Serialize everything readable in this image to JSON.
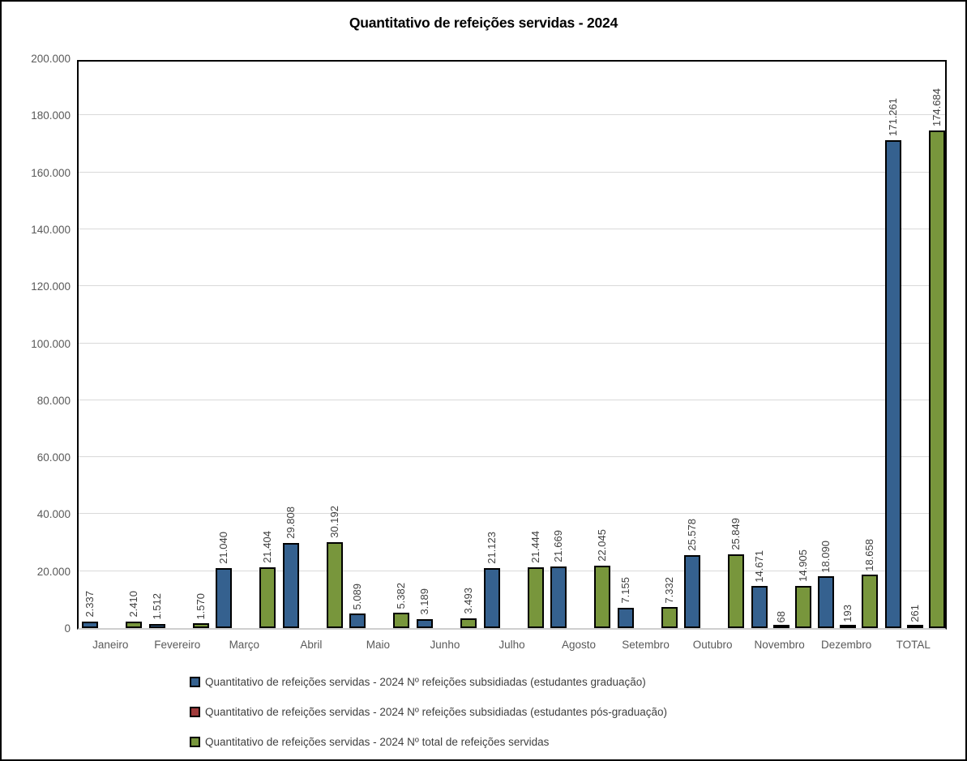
{
  "title": "Quantitativo de refeições servidas - 2024",
  "chart_data": {
    "type": "bar",
    "categories": [
      "Janeiro",
      "Fevereiro",
      "Março",
      "Abril",
      "Maio",
      "Junho",
      "Julho",
      "Agosto",
      "Setembro",
      "Outubro",
      "Novembro",
      "Dezembro",
      "TOTAL"
    ],
    "series": [
      {
        "name": "Quantitativo de refeições servidas - 2024 Nº refeições subsidiadas (estudantes graduação)",
        "color": "#35618F",
        "values": [
          2337,
          1512,
          21040,
          29808,
          5089,
          3189,
          21123,
          21669,
          7155,
          25578,
          14671,
          18090,
          171261
        ],
        "value_labels": [
          "2.337",
          "1.512",
          "21.040",
          "29.808",
          "5.089",
          "3.189",
          "21.123",
          "21.669",
          "7.155",
          "25.578",
          "14.671",
          "18.090",
          "171.261"
        ]
      },
      {
        "name": "Quantitativo de refeições servidas - 2024 Nº refeições subsidiadas (estudantes pós-graduação)",
        "color": "#A03B3B",
        "values": [
          null,
          null,
          null,
          null,
          null,
          null,
          null,
          null,
          null,
          null,
          68,
          193,
          261
        ],
        "value_labels": [
          null,
          null,
          null,
          null,
          null,
          null,
          null,
          null,
          null,
          null,
          "68",
          "193",
          "261"
        ]
      },
      {
        "name": "Quantitativo de refeições servidas - 2024 Nº total de refeições servidas",
        "color": "#78963C",
        "values": [
          2410,
          1570,
          21404,
          30192,
          5382,
          3493,
          21444,
          22045,
          7332,
          25849,
          14905,
          18658,
          174684
        ],
        "value_labels": [
          "2.410",
          "1.570",
          "21.404",
          "30.192",
          "5.382",
          "3.493",
          "21.444",
          "22.045",
          "7.332",
          "25.849",
          "14.905",
          "18.658",
          "174.684"
        ]
      }
    ],
    "ylim": [
      0,
      200000
    ],
    "ytick_step": 20000,
    "ytick_labels": [
      "0",
      "20.000",
      "40.000",
      "60.000",
      "80.000",
      "100.000",
      "120.000",
      "140.000",
      "160.000",
      "180.000",
      "200.000"
    ],
    "grid": true,
    "legend_position": "bottom-left",
    "colors": {
      "grid": "#D9D9D9",
      "axis_text": "#595959",
      "label_text": "#3F3F3F",
      "plot_border": "#000000",
      "background": "#FFFFFF"
    }
  }
}
